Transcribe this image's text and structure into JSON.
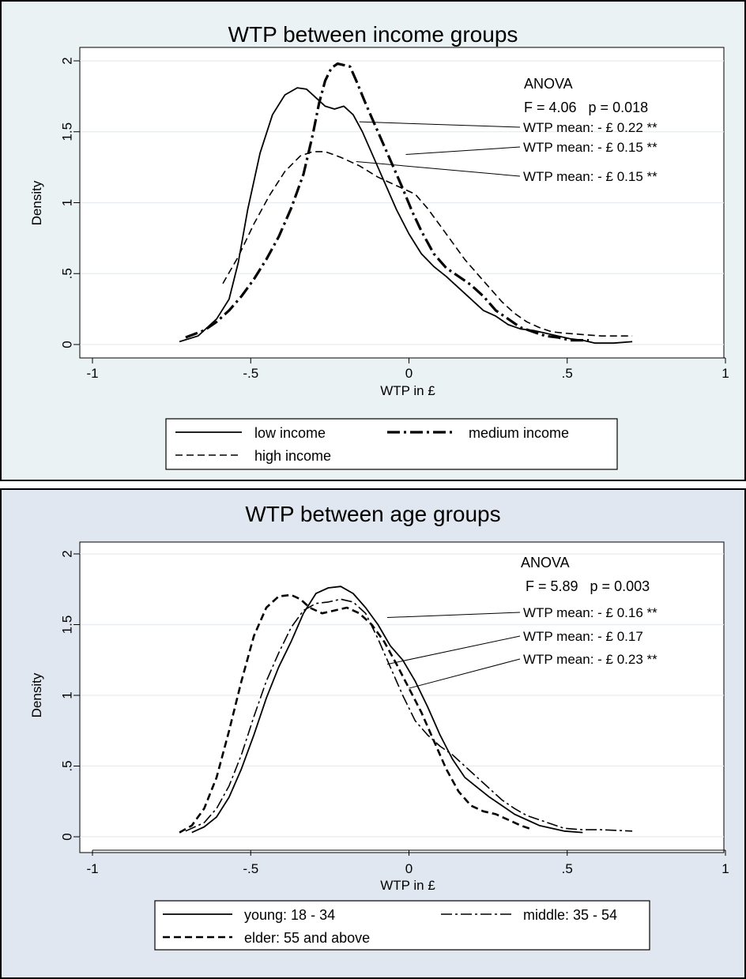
{
  "colors": {
    "outer_bg_1": "#eaf2f3",
    "outer_bg_2": "#e1e7f0",
    "plot_bg": "#ffffff",
    "grid": "#e6ecef",
    "line": "#000000"
  },
  "chart_data": [
    {
      "type": "line",
      "title": "WTP between income groups",
      "xlabel": "WTP in £",
      "ylabel": "Density",
      "xlim": [
        -1,
        1
      ],
      "ylim": [
        0,
        2
      ],
      "xticks": [
        -1,
        -0.5,
        0,
        0.5,
        1
      ],
      "xtick_labels": [
        "-1",
        "-.5",
        "0",
        ".5",
        "1"
      ],
      "yticks": [
        0,
        0.5,
        1,
        1.5,
        2
      ],
      "ytick_labels": [
        "0",
        ".5",
        "1",
        "1.5",
        "2"
      ],
      "grid": true,
      "legend_position": "bottom",
      "annotation_header": "ANOVA",
      "annotation_stats": "F = 4.06   p = 0.018",
      "series": [
        {
          "name": "low income",
          "dash": "solid",
          "mean_label": "WTP mean: - £ 0.22 **",
          "pointer_from": [
            -0.16,
            1.57
          ],
          "x": [
            -0.74,
            -0.68,
            -0.62,
            -0.58,
            -0.55,
            -0.52,
            -0.48,
            -0.44,
            -0.4,
            -0.36,
            -0.33,
            -0.3,
            -0.27,
            -0.24,
            -0.21,
            -0.18,
            -0.15,
            -0.12,
            -0.08,
            -0.04,
            0.0,
            0.04,
            0.08,
            0.12,
            0.16,
            0.2,
            0.24,
            0.28,
            0.32,
            0.36,
            0.4,
            0.44,
            0.48,
            0.52,
            0.56,
            0.6,
            0.66,
            0.72
          ],
          "y": [
            0.02,
            0.06,
            0.18,
            0.32,
            0.58,
            0.95,
            1.35,
            1.62,
            1.76,
            1.81,
            1.8,
            1.74,
            1.68,
            1.66,
            1.68,
            1.62,
            1.5,
            1.35,
            1.15,
            0.95,
            0.78,
            0.64,
            0.55,
            0.48,
            0.4,
            0.32,
            0.24,
            0.2,
            0.14,
            0.11,
            0.1,
            0.08,
            0.06,
            0.04,
            0.03,
            0.01,
            0.01,
            0.02
          ]
        },
        {
          "name": "medium income",
          "dash": "longdashdot",
          "mean_label": "WTP mean: - £ 0.15 **",
          "pointer_from": [
            -0.01,
            1.34
          ],
          "x": [
            -0.72,
            -0.66,
            -0.62,
            -0.58,
            -0.54,
            -0.5,
            -0.46,
            -0.42,
            -0.38,
            -0.34,
            -0.31,
            -0.29,
            -0.27,
            -0.25,
            -0.23,
            -0.21,
            -0.19,
            -0.17,
            -0.14,
            -0.11,
            -0.08,
            -0.05,
            -0.02,
            0.01,
            0.04,
            0.08,
            0.12,
            0.16,
            0.2,
            0.24,
            0.28,
            0.32,
            0.36,
            0.4,
            0.44,
            0.48,
            0.52,
            0.58
          ],
          "y": [
            0.05,
            0.1,
            0.16,
            0.24,
            0.34,
            0.46,
            0.6,
            0.76,
            0.96,
            1.2,
            1.48,
            1.7,
            1.86,
            1.95,
            1.98,
            1.97,
            1.96,
            1.86,
            1.7,
            1.55,
            1.4,
            1.25,
            1.1,
            0.94,
            0.8,
            0.64,
            0.54,
            0.48,
            0.42,
            0.34,
            0.24,
            0.18,
            0.12,
            0.09,
            0.06,
            0.05,
            0.03,
            0.03
          ]
        },
        {
          "name": "high income",
          "dash": "dash",
          "mean_label": "WTP mean: - £ 0.15 **",
          "pointer_from": [
            -0.17,
            1.29
          ],
          "x": [
            -0.6,
            -0.55,
            -0.5,
            -0.45,
            -0.4,
            -0.35,
            -0.31,
            -0.27,
            -0.22,
            -0.16,
            -0.1,
            -0.04,
            0.02,
            0.06,
            0.1,
            0.14,
            0.18,
            0.22,
            0.26,
            0.3,
            0.34,
            0.38,
            0.42,
            0.46,
            0.5,
            0.56,
            0.62,
            0.72
          ],
          "y": [
            0.43,
            0.62,
            0.85,
            1.05,
            1.22,
            1.33,
            1.36,
            1.36,
            1.32,
            1.26,
            1.18,
            1.12,
            1.06,
            0.96,
            0.84,
            0.72,
            0.6,
            0.5,
            0.4,
            0.3,
            0.22,
            0.16,
            0.12,
            0.09,
            0.08,
            0.07,
            0.06,
            0.06
          ]
        }
      ]
    },
    {
      "type": "line",
      "title": "WTP between age groups",
      "xlabel": "WTP in £",
      "ylabel": "Density",
      "xlim": [
        -1,
        1
      ],
      "ylim": [
        0,
        2
      ],
      "xticks": [
        -1,
        -0.5,
        0,
        0.5,
        1
      ],
      "xtick_labels": [
        "-1",
        "-.5",
        "0",
        ".5",
        "1"
      ],
      "yticks": [
        0,
        0.5,
        1,
        1.5,
        2
      ],
      "ytick_labels": [
        "0",
        ".5",
        "1",
        "1.5",
        "2"
      ],
      "grid": true,
      "legend_position": "bottom",
      "annotation_header": "ANOVA",
      "annotation_stats": "F = 5.89   p = 0.003",
      "series": [
        {
          "name": "young: 18 - 34",
          "dash": "solid",
          "mean_label": "WTP mean: - £ 0.16 **",
          "pointer_from": [
            -0.07,
            1.55
          ],
          "x": [
            -0.7,
            -0.66,
            -0.62,
            -0.58,
            -0.54,
            -0.5,
            -0.46,
            -0.42,
            -0.38,
            -0.34,
            -0.3,
            -0.26,
            -0.22,
            -0.18,
            -0.14,
            -0.1,
            -0.06,
            -0.02,
            0.02,
            0.06,
            0.1,
            0.14,
            0.18,
            0.22,
            0.26,
            0.3,
            0.34,
            0.38,
            0.42,
            0.46,
            0.5,
            0.56
          ],
          "y": [
            0.03,
            0.07,
            0.14,
            0.28,
            0.48,
            0.72,
            0.98,
            1.2,
            1.38,
            1.58,
            1.72,
            1.76,
            1.77,
            1.72,
            1.62,
            1.5,
            1.35,
            1.25,
            1.1,
            0.92,
            0.72,
            0.55,
            0.42,
            0.35,
            0.28,
            0.22,
            0.16,
            0.12,
            0.08,
            0.06,
            0.04,
            0.03
          ]
        },
        {
          "name": "middle: 35 - 54",
          "dash": "dashdot",
          "mean_label": "WTP mean: - £ 0.17",
          "pointer_from": [
            -0.07,
            1.22
          ],
          "x": [
            -0.72,
            -0.66,
            -0.62,
            -0.58,
            -0.54,
            -0.5,
            -0.46,
            -0.42,
            -0.38,
            -0.34,
            -0.3,
            -0.26,
            -0.22,
            -0.18,
            -0.14,
            -0.1,
            -0.06,
            -0.02,
            0.02,
            0.06,
            0.1,
            0.14,
            0.18,
            0.22,
            0.26,
            0.3,
            0.34,
            0.38,
            0.42,
            0.46,
            0.5,
            0.56,
            0.62,
            0.72
          ],
          "y": [
            0.04,
            0.1,
            0.2,
            0.36,
            0.58,
            0.85,
            1.1,
            1.3,
            1.48,
            1.6,
            1.65,
            1.66,
            1.68,
            1.66,
            1.58,
            1.4,
            1.2,
            1.0,
            0.82,
            0.72,
            0.64,
            0.58,
            0.5,
            0.42,
            0.34,
            0.26,
            0.2,
            0.15,
            0.12,
            0.09,
            0.06,
            0.05,
            0.05,
            0.04
          ]
        },
        {
          "name": "elder: 55 and above",
          "dash": "dash",
          "mean_label": "WTP mean: - £ 0.23 **",
          "pointer_from": [
            0.0,
            1.05
          ],
          "x": [
            -0.74,
            -0.7,
            -0.66,
            -0.62,
            -0.58,
            -0.54,
            -0.5,
            -0.46,
            -0.42,
            -0.38,
            -0.35,
            -0.32,
            -0.28,
            -0.24,
            -0.2,
            -0.16,
            -0.12,
            -0.08,
            -0.04,
            0.0,
            0.04,
            0.08,
            0.12,
            0.16,
            0.2,
            0.24,
            0.28,
            0.32,
            0.36,
            0.4
          ],
          "y": [
            0.03,
            0.08,
            0.2,
            0.42,
            0.75,
            1.1,
            1.42,
            1.62,
            1.7,
            1.71,
            1.68,
            1.62,
            1.58,
            1.6,
            1.62,
            1.58,
            1.5,
            1.38,
            1.22,
            1.05,
            0.88,
            0.68,
            0.48,
            0.32,
            0.22,
            0.18,
            0.16,
            0.12,
            0.08,
            0.05
          ]
        }
      ]
    }
  ]
}
